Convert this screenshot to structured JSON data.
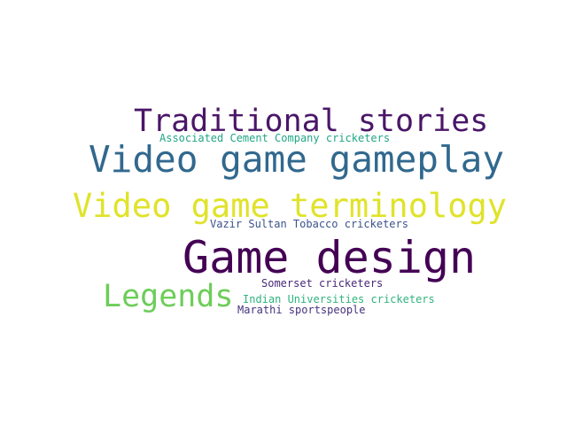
{
  "words": [
    {
      "text": "Game design",
      "color": "#440154"
    },
    {
      "text": "Video game gameplay",
      "color": "#31688e"
    },
    {
      "text": "Video game terminology",
      "color": "#e0e32a"
    },
    {
      "text": "Traditional stories",
      "color": "#4a1668"
    },
    {
      "text": "Legends",
      "color": "#6dcd59"
    },
    {
      "text": "Associated Cement Company cricketers",
      "color": "#21a685"
    },
    {
      "text": "Vazir Sultan Tobacco cricketers",
      "color": "#3b528b"
    },
    {
      "text": "Somerset cricketers",
      "color": "#482878"
    },
    {
      "text": "Indian Universities cricketers",
      "color": "#2fb47c"
    },
    {
      "text": "Marathi sportspeople",
      "color": "#46337e"
    }
  ]
}
